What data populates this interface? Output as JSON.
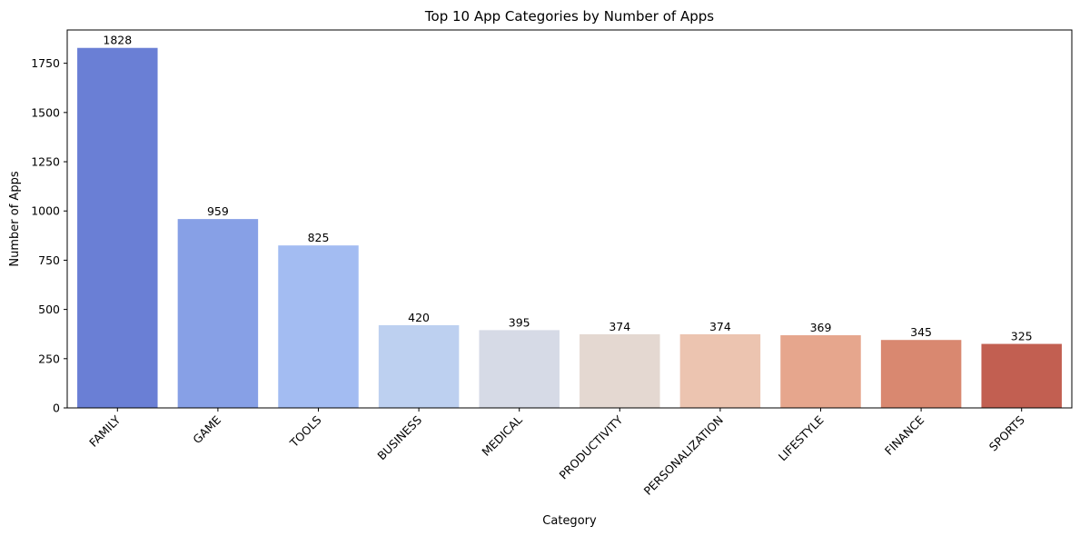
{
  "chart_data": {
    "type": "bar",
    "title": "Top 10 App Categories by Number of Apps",
    "xlabel": "Category",
    "ylabel": "Number of Apps",
    "categories": [
      "FAMILY",
      "GAME",
      "TOOLS",
      "BUSINESS",
      "MEDICAL",
      "PRODUCTIVITY",
      "PERSONALIZATION",
      "LIFESTYLE",
      "FINANCE",
      "SPORTS"
    ],
    "values": [
      1828,
      959,
      825,
      420,
      395,
      374,
      374,
      369,
      345,
      325
    ],
    "colors": [
      "#6a7fd5",
      "#87a0e6",
      "#a3bcf2",
      "#bdd0f0",
      "#d6dae6",
      "#e4d8d1",
      "#ecc4b0",
      "#e6a68d",
      "#d98870",
      "#c25f51"
    ],
    "yticks": [
      0,
      250,
      500,
      750,
      1000,
      1250,
      1500,
      1750
    ],
    "ylim": [
      0,
      1919
    ],
    "grid": false,
    "legend": false
  }
}
